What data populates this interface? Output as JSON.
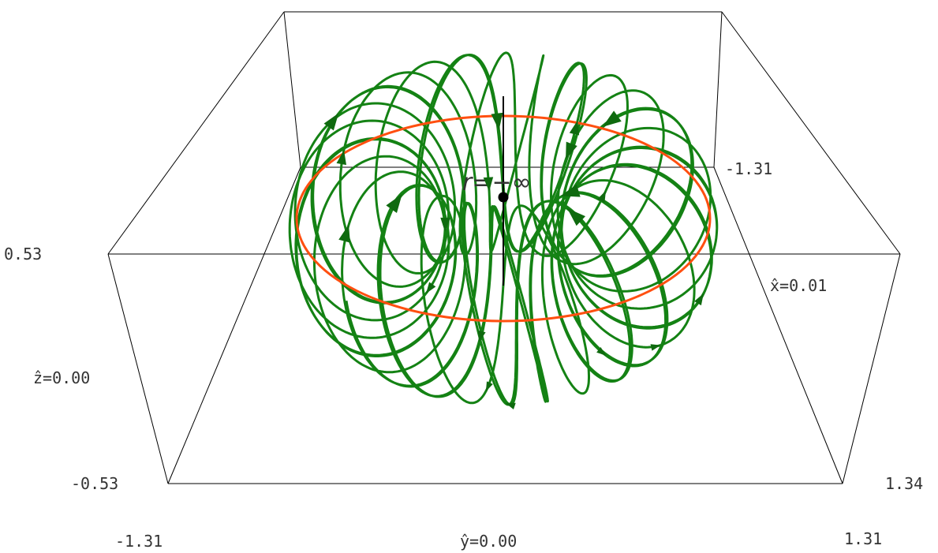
{
  "colors": {
    "trajectory": "#148214",
    "limit_cycle": "#ff4f10",
    "fixed_point": "#000000",
    "box": "#000000",
    "text": "#333333"
  },
  "labels": {
    "r_fixed_point": "r=−∞",
    "z_top": "0.53",
    "z_mid": "ẑ=0.00",
    "z_bottom": "-0.53",
    "y_left": "-1.31",
    "y_mid": "ŷ=0.00",
    "y_right": "1.31",
    "x_back": "-1.31",
    "x_mid": "x̂=0.01",
    "x_front": "1.34"
  },
  "scene": {
    "type": "3d-phase-portrait",
    "x_range": [
      -1.31,
      1.34
    ],
    "y_range": [
      -1.31,
      1.31
    ],
    "z_range": [
      -0.53,
      0.53
    ],
    "trajectory": "quasi-periodic orbit winding on a torus",
    "limit_cycle": "circle",
    "fixed_point": "r = −∞ with vertical axis line",
    "arrow_markers": 20
  }
}
